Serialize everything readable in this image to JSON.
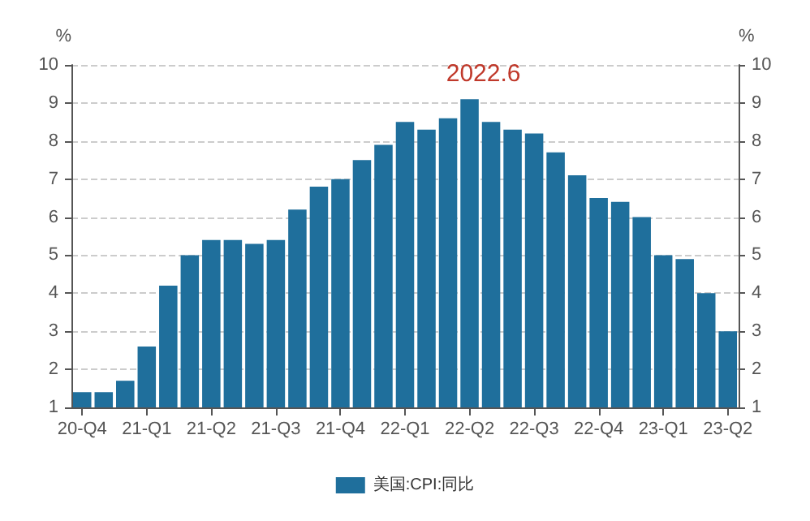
{
  "chart_data": {
    "type": "bar",
    "ylabel": "%",
    "y2label": "%",
    "categories": [
      "20-Q4",
      null,
      null,
      "21-Q1",
      null,
      null,
      "21-Q2",
      null,
      null,
      "21-Q3",
      null,
      null,
      "21-Q4",
      null,
      null,
      "22-Q1",
      null,
      null,
      "22-Q2",
      null,
      null,
      "22-Q3",
      null,
      null,
      "22-Q4",
      null,
      null,
      "23-Q1",
      null,
      null,
      "23-Q2"
    ],
    "series": [
      {
        "name": "美国:CPI:同比",
        "color": "#1f6f9c",
        "values": [
          1.4,
          1.4,
          1.7,
          2.6,
          4.2,
          5.0,
          5.4,
          5.4,
          5.3,
          5.4,
          6.2,
          6.8,
          7.0,
          7.5,
          7.9,
          8.5,
          8.3,
          8.6,
          9.1,
          8.5,
          8.3,
          8.2,
          7.7,
          7.1,
          6.5,
          6.4,
          6.0,
          5.0,
          4.9,
          4.0,
          3.0
        ]
      }
    ],
    "ylim": [
      1,
      10
    ],
    "yticks": [
      1,
      2,
      3,
      4,
      5,
      6,
      7,
      8,
      9,
      10
    ],
    "y2lim": [
      1,
      10
    ],
    "y2ticks": [
      1,
      2,
      3,
      4,
      5,
      6,
      7,
      8,
      9,
      10
    ],
    "grid": "y",
    "legend": "bottom",
    "annotations": [
      "2022.6"
    ]
  }
}
